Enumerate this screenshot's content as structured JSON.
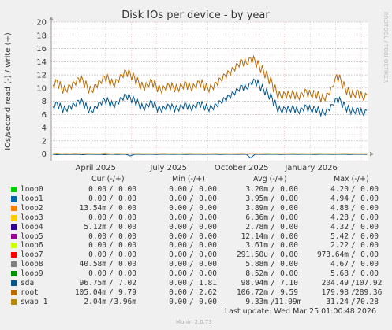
{
  "chart_data": {
    "type": "line",
    "title": "Disk IOs per device - by year",
    "ylabel": "IOs/second read (-) / write (+)",
    "ylim": [
      -1,
      20
    ],
    "yticks": [
      0,
      2,
      4,
      6,
      8,
      10,
      12,
      14,
      16,
      18,
      20
    ],
    "x_ticks": [
      "April 2025",
      "July 2025",
      "October 2025",
      "January 2026"
    ],
    "side_label": "RRDTOOL / TOBI OETIKER",
    "grid": true,
    "series": [
      {
        "name": "sda",
        "color": "#00578f",
        "values": [
          7.2,
          7.8,
          7.0,
          6.8,
          7.3,
          7.5,
          8.1,
          7.9,
          7.0,
          6.5,
          7.2,
          7.8,
          8.3,
          8.0,
          7.4,
          7.9,
          8.5,
          9.0,
          8.6,
          8.2,
          7.6,
          7.0,
          7.5,
          8.0,
          7.2,
          6.8,
          7.0,
          7.4,
          7.1,
          6.9,
          7.3,
          7.6,
          7.0,
          7.2,
          7.8,
          7.4,
          7.0,
          7.1,
          7.5,
          8.0,
          8.4,
          8.8,
          9.3,
          9.8,
          10.4,
          10.0,
          10.8,
          11.2,
          10.5,
          9.8,
          9.2,
          8.5,
          7.2,
          6.6,
          7.0,
          6.8,
          7.1,
          6.5,
          6.9,
          7.3,
          6.7,
          7.0,
          6.6,
          6.2,
          6.8,
          7.5,
          8.5,
          8.0,
          7.2,
          6.8,
          6.5,
          6.9,
          6.2,
          6.6
        ]
      },
      {
        "name": "root",
        "color": "#ba6b00",
        "values": [
          10.5,
          11.2,
          10.0,
          9.8,
          10.4,
          10.8,
          11.5,
          11.2,
          10.2,
          9.6,
          10.5,
          11.0,
          11.8,
          11.4,
          10.6,
          11.2,
          12.0,
          12.6,
          12.2,
          11.6,
          10.8,
          10.2,
          10.6,
          11.2,
          10.4,
          9.8,
          10.0,
          10.5,
          10.2,
          10.0,
          10.4,
          10.8,
          10.1,
          10.3,
          11.0,
          10.6,
          10.0,
          10.2,
          10.8,
          11.4,
          12.0,
          12.4,
          13.0,
          13.6,
          14.2,
          13.8,
          14.6,
          14.2,
          13.4,
          12.6,
          11.8,
          10.8,
          9.4,
          8.8,
          9.2,
          9.0,
          9.3,
          8.7,
          9.2,
          9.6,
          9.0,
          9.4,
          8.8,
          8.4,
          9.2,
          10.2,
          12.0,
          11.2,
          10.0,
          9.4,
          9.0,
          9.6,
          8.6,
          9.0
        ]
      },
      {
        "name": "swap_1",
        "color": "#b8860b",
        "values": [
          0.05,
          0.08,
          0.04,
          0.06,
          0.03,
          0.07,
          0.05,
          0.04,
          0.06,
          0.05,
          0.03,
          0.04,
          0.08,
          0.05,
          0.04,
          0.06,
          0.05,
          0.03,
          0.04,
          0.05,
          0.06,
          0.04,
          0.05,
          0.03,
          0.04,
          0.05,
          0.06,
          0.04,
          0.05,
          0.03,
          0.04,
          0.05,
          0.06,
          0.04,
          0.05,
          0.03,
          0.04,
          0.05,
          0.06,
          0.04,
          0.05,
          0.03,
          0.04,
          0.05,
          0.06,
          0.04,
          0.05,
          0.03,
          0.04,
          0.05,
          0.06,
          0.04,
          0.05,
          0.03,
          0.04,
          0.05,
          0.06,
          0.04,
          0.05,
          0.03,
          0.04,
          0.05,
          0.06,
          0.04,
          0.05,
          0.03,
          0.04,
          0.05,
          0.06,
          0.04,
          0.05,
          0.03,
          0.04,
          0.05
        ]
      },
      {
        "name": "sda read",
        "color": "#00578f",
        "values": [
          -0.05,
          -0.1,
          -0.05,
          -0.08,
          -0.05,
          -0.06,
          -0.05,
          -0.1,
          -0.05,
          -0.05,
          -0.06,
          -0.05,
          -0.1,
          -0.05,
          -0.05,
          -0.08,
          -0.05,
          -0.05,
          -0.3,
          -0.05,
          -0.05,
          -0.06,
          -0.05,
          -0.05,
          -0.08,
          -0.05,
          -0.05,
          -0.05,
          -0.06,
          -0.05,
          -0.05,
          -0.08,
          -0.05,
          -0.05,
          -0.05,
          -0.06,
          -0.05,
          -0.05,
          -0.05,
          -0.08,
          -0.05,
          -0.05,
          -0.05,
          -0.06,
          -0.05,
          -0.05,
          -0.6,
          -0.05,
          -0.05,
          -0.06,
          -0.05,
          -0.05,
          -0.05,
          -0.08,
          -0.05,
          -0.05,
          -0.05,
          -0.06,
          -0.05,
          -0.05,
          -0.05,
          -0.08,
          -0.05,
          -0.05,
          -0.05,
          -0.06,
          -0.05,
          -0.05,
          -0.05,
          -0.08,
          -0.05,
          -0.05,
          -0.05,
          -0.06
        ]
      }
    ]
  },
  "legend": {
    "headers": {
      "cur": "Cur (-/+)",
      "min": "Min (-/+)",
      "avg": "Avg (-/+)",
      "max": "Max (-/+)"
    },
    "rows": [
      {
        "name": "loop0",
        "color": "#00cc00",
        "cur_r": "0.00",
        "cur_w": "0.00",
        "min_r": "0.00",
        "min_w": "0.00",
        "avg_r": "3.20m",
        "avg_w": "0.00",
        "max_r": "4.20",
        "max_w": "0.00"
      },
      {
        "name": "loop1",
        "color": "#0066b3",
        "cur_r": "0.00",
        "cur_w": "0.00",
        "min_r": "0.00",
        "min_w": "0.00",
        "avg_r": "3.95m",
        "avg_w": "0.00",
        "max_r": "4.94",
        "max_w": "0.00"
      },
      {
        "name": "loop2",
        "color": "#ff8000",
        "cur_r": "13.54m",
        "cur_w": "0.00",
        "min_r": "0.00",
        "min_w": "0.00",
        "avg_r": "3.89m",
        "avg_w": "0.00",
        "max_r": "4.88",
        "max_w": "0.00"
      },
      {
        "name": "loop3",
        "color": "#ffcc00",
        "cur_r": "0.00",
        "cur_w": "0.00",
        "min_r": "0.00",
        "min_w": "0.00",
        "avg_r": "6.36m",
        "avg_w": "0.00",
        "max_r": "4.28",
        "max_w": "0.00"
      },
      {
        "name": "loop4",
        "color": "#330099",
        "cur_r": "5.12m",
        "cur_w": "0.00",
        "min_r": "0.00",
        "min_w": "0.00",
        "avg_r": "2.78m",
        "avg_w": "0.00",
        "max_r": "4.32",
        "max_w": "0.00"
      },
      {
        "name": "loop5",
        "color": "#990099",
        "cur_r": "0.00",
        "cur_w": "0.00",
        "min_r": "0.00",
        "min_w": "0.00",
        "avg_r": "12.14m",
        "avg_w": "0.00",
        "max_r": "5.42",
        "max_w": "0.00"
      },
      {
        "name": "loop6",
        "color": "#ccff00",
        "cur_r": "0.00",
        "cur_w": "0.00",
        "min_r": "0.00",
        "min_w": "0.00",
        "avg_r": "3.61m",
        "avg_w": "0.00",
        "max_r": "2.22",
        "max_w": "0.00"
      },
      {
        "name": "loop7",
        "color": "#ff0000",
        "cur_r": "0.00",
        "cur_w": "0.00",
        "min_r": "0.00",
        "min_w": "0.00",
        "avg_r": "291.50u",
        "avg_w": "0.00",
        "max_r": "973.64m",
        "max_w": "0.00"
      },
      {
        "name": "loop8",
        "color": "#808080",
        "cur_r": "40.58m",
        "cur_w": "0.00",
        "min_r": "0.00",
        "min_w": "0.00",
        "avg_r": "5.88m",
        "avg_w": "0.00",
        "max_r": "4.67",
        "max_w": "0.00"
      },
      {
        "name": "loop9",
        "color": "#008f00",
        "cur_r": "0.00",
        "cur_w": "0.00",
        "min_r": "0.00",
        "min_w": "0.00",
        "avg_r": "8.52m",
        "avg_w": "0.00",
        "max_r": "5.68",
        "max_w": "0.00"
      },
      {
        "name": "sda",
        "color": "#00578f",
        "cur_r": "96.75m",
        "cur_w": "7.02",
        "min_r": "0.00",
        "min_w": "1.81",
        "avg_r": "98.94m",
        "avg_w": "7.10",
        "max_r": "204.49",
        "max_w": "107.92"
      },
      {
        "name": "root",
        "color": "#ba6b00",
        "cur_r": "105.04m",
        "cur_w": "9.79",
        "min_r": "0.00",
        "min_w": "2.62",
        "avg_r": "106.72m",
        "avg_w": "9.59",
        "max_r": "179.98",
        "max_w": "289.36"
      },
      {
        "name": "swap_1",
        "color": "#b8860b",
        "cur_r": "2.04m",
        "cur_w": "3.96m",
        "min_r": "0.00",
        "min_w": "0.00",
        "avg_r": "9.33m",
        "avg_w": "11.09m",
        "max_r": "31.24",
        "max_w": "70.28"
      }
    ]
  },
  "last_update": "Last update: Wed Mar 25 01:00:48 2026",
  "munin_version": "Munin 2.0.73"
}
